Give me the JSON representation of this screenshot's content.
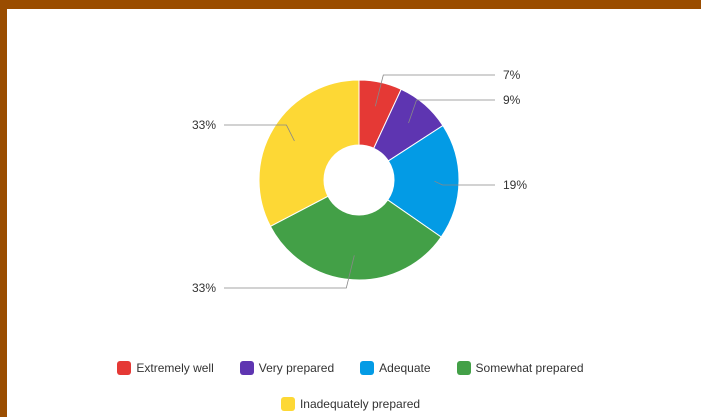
{
  "chart_data": {
    "type": "pie",
    "donut": true,
    "title": "",
    "categories": [
      "Extremely well",
      "Very prepared",
      "Adequate",
      "Somewhat prepared",
      "Inadequately prepared"
    ],
    "values": [
      7,
      9,
      19,
      33,
      33
    ],
    "labels": [
      "7%",
      "9%",
      "19%",
      "33%",
      "33%"
    ],
    "colors": [
      "#e53935",
      "#5e35b1",
      "#039be5",
      "#43a047",
      "#fdd835"
    ],
    "legend_position": "bottom"
  }
}
